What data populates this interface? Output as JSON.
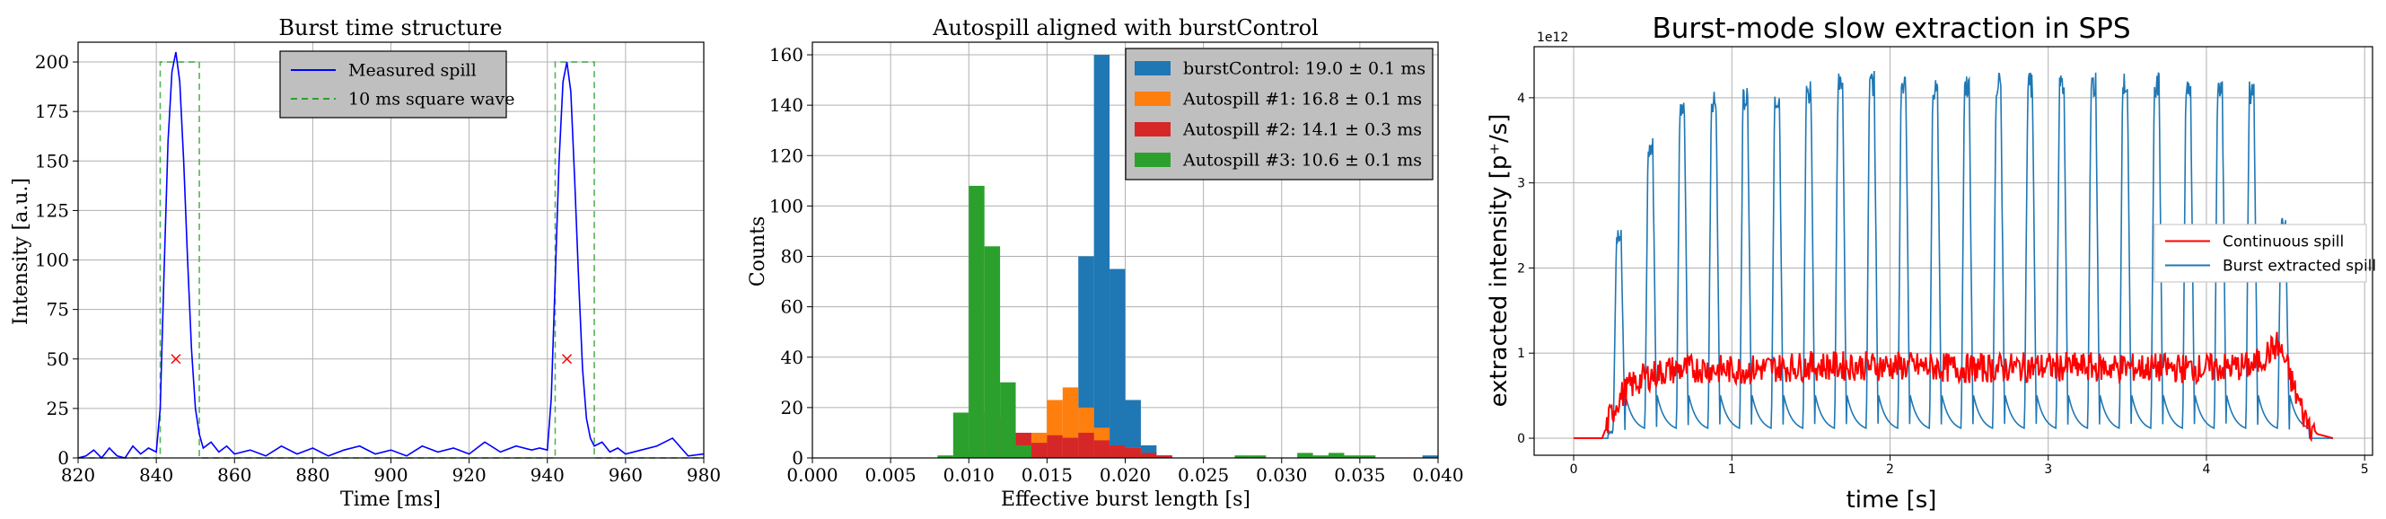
{
  "chart_data": [
    {
      "type": "line",
      "title": "Burst time structure",
      "xlabel": "Time [ms]",
      "ylabel": "Intensity [a.u.]",
      "xlim": [
        820,
        980
      ],
      "ylim": [
        0,
        210
      ],
      "xticks": [
        820,
        840,
        860,
        880,
        900,
        920,
        940,
        960,
        980
      ],
      "yticks": [
        0,
        25,
        50,
        75,
        100,
        125,
        150,
        175,
        200
      ],
      "grid": true,
      "legend_position": "top-center",
      "series": [
        {
          "name": "Measured spill",
          "color": "#0000ff",
          "style": "solid",
          "x": [
            820,
            822,
            824,
            826,
            828,
            830,
            832,
            834,
            836,
            838,
            840,
            841,
            842,
            843,
            844,
            845,
            846,
            847,
            848,
            849,
            850,
            851,
            852,
            854,
            856,
            858,
            860,
            864,
            868,
            872,
            876,
            880,
            884,
            888,
            892,
            896,
            900,
            904,
            908,
            912,
            916,
            920,
            924,
            928,
            932,
            936,
            938,
            940,
            941,
            942,
            943,
            944,
            945,
            946,
            947,
            948,
            949,
            950,
            951,
            952,
            954,
            956,
            958,
            960,
            964,
            968,
            972,
            976,
            980
          ],
          "y": [
            0,
            1,
            4,
            0,
            5,
            1,
            0,
            6,
            2,
            5,
            3,
            25,
            95,
            160,
            195,
            205,
            190,
            150,
            100,
            55,
            25,
            12,
            5,
            8,
            3,
            6,
            2,
            4,
            1,
            6,
            2,
            5,
            1,
            4,
            6,
            2,
            4,
            1,
            6,
            3,
            5,
            2,
            8,
            3,
            6,
            4,
            5,
            4,
            30,
            90,
            150,
            190,
            200,
            185,
            140,
            90,
            45,
            20,
            10,
            6,
            8,
            3,
            5,
            2,
            4,
            6,
            10,
            1,
            2
          ]
        },
        {
          "name": "10 ms square wave",
          "color": "#2ca02c",
          "style": "dashed",
          "x": [
            820,
            841,
            841,
            851,
            851,
            942,
            942,
            952,
            952,
            980
          ],
          "y": [
            0,
            0,
            200,
            200,
            0,
            0,
            200,
            200,
            0,
            0
          ]
        }
      ],
      "markers": {
        "color": "#ff0000",
        "symbol": "x",
        "points": [
          [
            845,
            50
          ],
          [
            945,
            50
          ]
        ]
      }
    },
    {
      "type": "bar",
      "title": "Autospill aligned with burstControl",
      "xlabel": "Effective burst length [s]",
      "ylabel": "Counts",
      "xlim": [
        0.0,
        0.04
      ],
      "ylim": [
        0,
        165
      ],
      "xticks": [
        "0.000",
        "0.005",
        "0.010",
        "0.015",
        "0.020",
        "0.025",
        "0.030",
        "0.035",
        "0.040"
      ],
      "yticks": [
        0,
        20,
        40,
        60,
        80,
        100,
        120,
        140,
        160
      ],
      "grid": true,
      "legend_position": "top-right",
      "series": [
        {
          "name": "burstControl: 19.0 ± 0.1 ms",
          "color": "#1f77b4",
          "bin_width": 0.001,
          "bin_starts": [
            0.017,
            0.018,
            0.019,
            0.02,
            0.021,
            0.022,
            0.039
          ],
          "values": [
            80,
            160,
            75,
            23,
            5,
            1,
            1
          ]
        },
        {
          "name": "Autospill #1: 16.8 ± 0.1 ms",
          "color": "#ff7f0e",
          "bin_width": 0.001,
          "bin_starts": [
            0.014,
            0.015,
            0.016,
            0.017,
            0.018,
            0.019,
            0.02
          ],
          "values": [
            10,
            23,
            28,
            20,
            12,
            5,
            4
          ]
        },
        {
          "name": "Autospill #2: 14.1 ± 0.3 ms",
          "color": "#d62728",
          "bin_width": 0.001,
          "bin_starts": [
            0.01,
            0.011,
            0.012,
            0.013,
            0.014,
            0.015,
            0.016,
            0.017,
            0.018,
            0.019,
            0.02,
            0.021,
            0.022
          ],
          "values": [
            3,
            18,
            16,
            10,
            6,
            9,
            8,
            10,
            7,
            5,
            4,
            2,
            1
          ]
        },
        {
          "name": "Autospill #3: 10.6 ± 0.1 ms",
          "color": "#2ca02c",
          "bin_width": 0.001,
          "bin_starts": [
            0.008,
            0.009,
            0.01,
            0.011,
            0.012,
            0.013,
            0.027,
            0.028,
            0.031,
            0.032,
            0.033,
            0.034,
            0.035
          ],
          "values": [
            1,
            18,
            108,
            84,
            30,
            5,
            1,
            1,
            2,
            1,
            2,
            1,
            1
          ]
        }
      ]
    },
    {
      "type": "line",
      "title": "Burst-mode slow extraction in SPS",
      "xlabel": "time [s]",
      "ylabel": "extracted intensity [p⁺/s]",
      "y_offset_text": "1e12",
      "xlim": [
        -0.25,
        5.05
      ],
      "ylim": [
        -0.2,
        4.6
      ],
      "xticks": [
        0,
        1,
        2,
        3,
        4,
        5
      ],
      "yticks": [
        0,
        1,
        2,
        3,
        4
      ],
      "grid": true,
      "legend_position": "center-right",
      "series": [
        {
          "name": "Continuous spill",
          "color": "#ff0000",
          "x": [
            0.0,
            0.18,
            0.22,
            0.28,
            0.35,
            0.45,
            0.6,
            0.8,
            1.0,
            1.5,
            2.0,
            2.5,
            3.0,
            3.5,
            4.0,
            4.3,
            4.45,
            4.5,
            4.55,
            4.62,
            4.7,
            4.8
          ],
          "y": [
            0.0,
            0.0,
            0.2,
            0.45,
            0.6,
            0.72,
            0.8,
            0.82,
            0.8,
            0.85,
            0.85,
            0.82,
            0.84,
            0.83,
            0.82,
            0.85,
            1.1,
            0.9,
            0.6,
            0.25,
            0.05,
            0.0
          ]
        },
        {
          "name": "Burst extracted spill",
          "color": "#1f77b4",
          "burst_times": [
            0.25,
            0.45,
            0.65,
            0.85,
            1.05,
            1.25,
            1.45,
            1.65,
            1.85,
            2.05,
            2.25,
            2.45,
            2.65,
            2.85,
            3.05,
            3.25,
            3.45,
            3.65,
            3.85,
            4.05,
            4.25,
            4.45
          ],
          "burst_peaks": [
            2.45,
            3.55,
            3.95,
            4.1,
            4.12,
            4.15,
            4.2,
            4.3,
            4.32,
            4.3,
            4.28,
            4.3,
            4.32,
            4.3,
            4.28,
            4.3,
            4.32,
            4.3,
            4.28,
            4.3,
            4.2,
            2.6
          ],
          "baseline": 0.08
        }
      ]
    }
  ]
}
